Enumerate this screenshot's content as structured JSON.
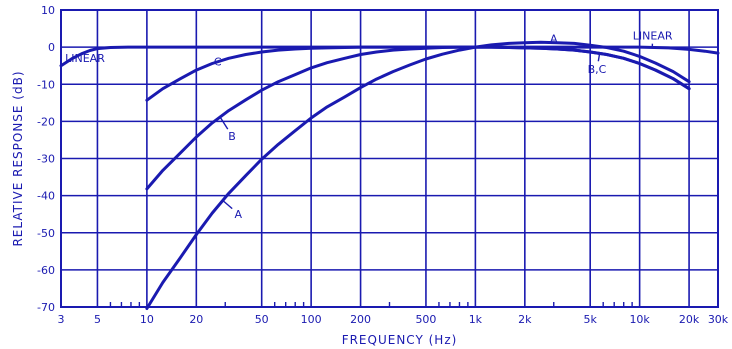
{
  "colors": {
    "ink": "#1a1ab0",
    "background": "#ffffff"
  },
  "chart_data": {
    "type": "line",
    "xlabel": "FREQUENCY (Hz)",
    "ylabel": "RELATIVE RESPONSE (dB)",
    "x_scale": "log",
    "xlim": [
      3,
      30000
    ],
    "ylim": [
      -70,
      10
    ],
    "grid": true,
    "x_ticks": [
      3,
      5,
      10,
      20,
      50,
      100,
      200,
      500,
      1000,
      2000,
      5000,
      10000,
      20000,
      30000
    ],
    "x_tick_labels": [
      "3",
      "5",
      "10",
      "20",
      "50",
      "100",
      "200",
      "500",
      "1k",
      "2k",
      "5k",
      "10k",
      "20k",
      "30k"
    ],
    "x_minor_ticks": [
      6,
      7,
      8,
      9,
      30,
      60,
      70,
      80,
      90,
      300,
      600,
      700,
      800,
      900,
      3000,
      6000,
      7000,
      8000,
      9000
    ],
    "y_ticks": [
      10,
      0,
      -10,
      -20,
      -30,
      -40,
      -50,
      -60,
      -70
    ],
    "y_tick_labels": [
      "10",
      "0",
      "-10",
      "-20",
      "-30",
      "-40",
      "-50",
      "-60",
      "-70"
    ],
    "series": [
      {
        "name": "A",
        "x": [
          10,
          12.5,
          16,
          20,
          25,
          31.5,
          40,
          50,
          63,
          80,
          100,
          125,
          160,
          200,
          250,
          315,
          400,
          500,
          630,
          800,
          1000,
          1250,
          1600,
          2000,
          2500,
          3150,
          4000,
          5000,
          6300,
          8000,
          10000,
          12500,
          16000,
          20000
        ],
        "y": [
          -70.4,
          -63.4,
          -56.7,
          -50.5,
          -44.7,
          -39.4,
          -34.6,
          -30.2,
          -26.2,
          -22.5,
          -19.1,
          -16.1,
          -13.4,
          -10.9,
          -8.6,
          -6.6,
          -4.8,
          -3.2,
          -1.9,
          -0.8,
          0,
          0.6,
          1.0,
          1.2,
          1.3,
          1.2,
          1.0,
          0.5,
          -0.1,
          -1.1,
          -2.5,
          -4.3,
          -6.6,
          -9.3
        ]
      },
      {
        "name": "B",
        "x": [
          10,
          12.5,
          16,
          20,
          25,
          31.5,
          40,
          50,
          63,
          80,
          100,
          125,
          160,
          200,
          250,
          315,
          400,
          500,
          630,
          800,
          1000,
          1250,
          1600,
          2000,
          2500,
          3150,
          4000,
          5000,
          6300,
          8000,
          10000,
          12500,
          16000,
          20000
        ],
        "y": [
          -38.2,
          -33.2,
          -28.5,
          -24.2,
          -20.4,
          -17.1,
          -14.2,
          -11.6,
          -9.3,
          -7.4,
          -5.6,
          -4.2,
          -3.0,
          -2.0,
          -1.3,
          -0.8,
          -0.5,
          -0.3,
          -0.1,
          0,
          0,
          0,
          -0.1,
          -0.2,
          -0.3,
          -0.5,
          -0.8,
          -1.3,
          -2.0,
          -3.0,
          -4.4,
          -6.2,
          -8.5,
          -11.2
        ]
      },
      {
        "name": "C",
        "x": [
          10,
          12.5,
          16,
          20,
          25,
          31.5,
          40,
          50,
          63,
          80,
          100,
          125,
          160,
          200,
          250,
          315,
          400,
          500,
          630,
          800,
          1000,
          1250,
          1600,
          2000,
          2500,
          3150,
          4000,
          5000,
          6300,
          8000,
          10000,
          12500,
          16000,
          20000
        ],
        "y": [
          -14.3,
          -11.2,
          -8.5,
          -6.2,
          -4.4,
          -3.0,
          -2.0,
          -1.3,
          -0.8,
          -0.5,
          -0.3,
          -0.2,
          -0.1,
          0,
          0,
          0,
          0,
          0,
          0,
          0,
          0,
          0,
          -0.1,
          -0.2,
          -0.3,
          -0.5,
          -0.8,
          -1.3,
          -2.0,
          -3.0,
          -4.4,
          -6.2,
          -8.5,
          -11.2
        ]
      },
      {
        "name": "LINEAR",
        "x": [
          3,
          3.5,
          4,
          4.5,
          5,
          6,
          8,
          10,
          20,
          50,
          1000,
          5000,
          10000,
          15000,
          20000,
          25000,
          30000
        ],
        "y": [
          -5.0,
          -3.1,
          -1.8,
          -0.9,
          -0.4,
          -0.1,
          0,
          0,
          0,
          0,
          0,
          0,
          0,
          -0.2,
          -0.6,
          -1.1,
          -1.6
        ]
      }
    ],
    "annotations": [
      {
        "text": "A",
        "series": "A",
        "at_x": 3000,
        "at_y": 1.3
      },
      {
        "text": "LINEAR",
        "series": "LINEAR",
        "at_x": 12000,
        "at_y": 2
      },
      {
        "text": "LINEAR",
        "series": "LINEAR",
        "at_x": 4.2,
        "at_y": -4
      },
      {
        "text": "C",
        "series": "C",
        "at_x": 27,
        "at_y": -5
      },
      {
        "text": "B",
        "series": "B",
        "at_x": 33,
        "at_y": -25
      },
      {
        "text": "A",
        "series": "A",
        "at_x": 36,
        "at_y": -46
      },
      {
        "text": "B,C",
        "series": "B",
        "at_x": 5500,
        "at_y": -7
      }
    ]
  }
}
